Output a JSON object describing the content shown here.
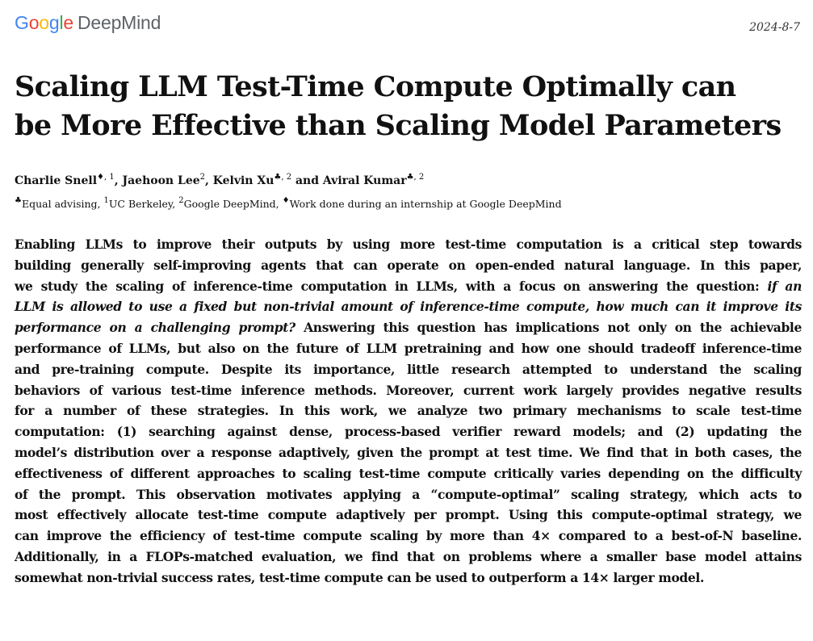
{
  "header": {
    "logo_letters": [
      "G",
      "o",
      "o",
      "g",
      "l",
      "e"
    ],
    "logo_suffix": "DeepMind",
    "date": "2024-8-7"
  },
  "paper": {
    "title_lines": [
      "Scaling LLM Test-Time Compute Optimally can",
      "be More Effective than Scaling Model Parameters"
    ],
    "authors": [
      {
        "name": "Charlie Snell",
        "marks": "♦, 1",
        "sep": ", "
      },
      {
        "name": "Jaehoon Lee",
        "marks": "2",
        "sep": ", "
      },
      {
        "name": "Kelvin Xu",
        "marks": "♣, 2",
        "sep": " and "
      },
      {
        "name": "Aviral Kumar",
        "marks": "♣, 2",
        "sep": ""
      }
    ],
    "affiliations": [
      {
        "mark": "♣",
        "text": "Equal advising, "
      },
      {
        "mark": "1",
        "text": "UC Berkeley, "
      },
      {
        "mark": "2",
        "text": "Google DeepMind, "
      },
      {
        "mark": "♦",
        "text": "Work done during an internship at Google DeepMind"
      }
    ],
    "abstract_lines": [
      [
        {
          "t": "Enabling LLMs to improve their outputs by using more test-time computation is a critical step towards"
        }
      ],
      [
        {
          "t": "building generally self-improving agents that can operate on open-ended natural language. In this paper,"
        }
      ],
      [
        {
          "t": "we study the scaling of inference-time computation in LLMs, with a focus on answering the question: "
        },
        {
          "t": "if an",
          "i": true
        }
      ],
      [
        {
          "t": "LLM is allowed to use a fixed but non-trivial amount of inference-time compute, how much can it improve its",
          "i": true
        }
      ],
      [
        {
          "t": "performance on a challenging prompt?",
          "i": true
        },
        {
          "t": " Answering this question has implications not only on the achievable"
        }
      ],
      [
        {
          "t": "performance of LLMs, but also on the future of LLM pretraining and how one should tradeoff inference-time"
        }
      ],
      [
        {
          "t": "and pre-training compute.  Despite its importance, little research attempted to understand the scaling"
        }
      ],
      [
        {
          "t": "behaviors of various test-time inference methods. Moreover, current work largely provides negative results"
        }
      ],
      [
        {
          "t": "for a number of these strategies.  In this work, we analyze two primary mechanisms to scale test-time"
        }
      ],
      [
        {
          "t": "computation: (1) searching against dense, process-based verifier reward models; and (2) updating the"
        }
      ],
      [
        {
          "t": "model’s distribution over a response adaptively, given the prompt at test time. We find that in both cases, the"
        }
      ],
      [
        {
          "t": "effectiveness of different approaches to scaling test-time compute critically varies depending on the difficulty"
        }
      ],
      [
        {
          "t": "of the prompt. This observation motivates applying a “compute-optimal” scaling strategy, which acts to"
        }
      ],
      [
        {
          "t": "most effectively allocate test-time compute adaptively per prompt. Using this compute-optimal strategy, we"
        }
      ],
      [
        {
          "t": "can improve the efficiency of test-time compute scaling by more than 4× compared to a best-of-N baseline."
        }
      ],
      [
        {
          "t": "Additionally, in a FLOPs-matched evaluation, we find that on problems where a smaller base model attains"
        }
      ],
      [
        {
          "t": "somewhat non-trivial success rates, test-time compute can be used to outperform a 14× larger model."
        }
      ]
    ]
  }
}
